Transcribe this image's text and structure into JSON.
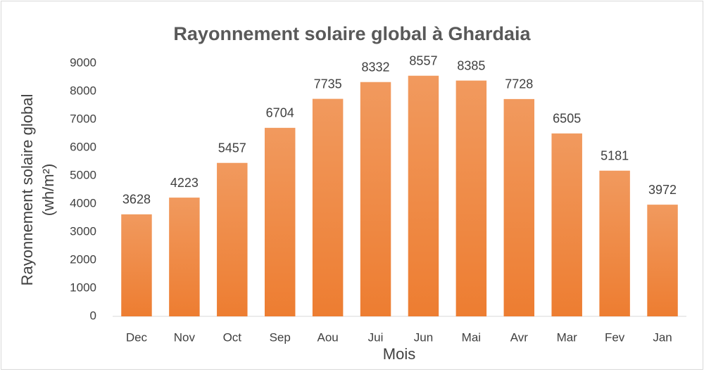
{
  "chart_data": {
    "type": "bar",
    "title": "Rayonnement solaire global à Ghardaia",
    "xlabel": "Mois",
    "ylabel": [
      "Rayonnement solaire global",
      "(wh/m²)"
    ],
    "categories": [
      "Dec",
      "Nov",
      "Oct",
      "Sep",
      "Aou",
      "Jui",
      "Jun",
      "Mai",
      "Avr",
      "Mar",
      "Fev",
      "Jan"
    ],
    "values": [
      3628,
      4223,
      5457,
      6704,
      7735,
      8332,
      8557,
      8385,
      7728,
      6505,
      5181,
      3972
    ],
    "color": "#ed7d31",
    "ylim": [
      0,
      9000
    ],
    "yticks": [
      0,
      1000,
      2000,
      3000,
      4000,
      5000,
      6000,
      7000,
      8000,
      9000
    ],
    "grid": false
  }
}
